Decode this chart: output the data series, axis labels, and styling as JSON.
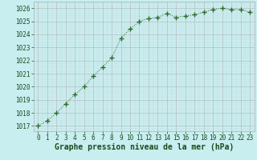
{
  "x": [
    0,
    1,
    2,
    3,
    4,
    5,
    6,
    7,
    8,
    9,
    10,
    11,
    12,
    13,
    14,
    15,
    16,
    17,
    18,
    19,
    20,
    21,
    22,
    23
  ],
  "y": [
    1017.0,
    1017.4,
    1018.0,
    1018.7,
    1019.4,
    1020.0,
    1020.8,
    1021.5,
    1022.2,
    1023.7,
    1024.4,
    1025.0,
    1025.2,
    1025.3,
    1025.6,
    1025.3,
    1025.4,
    1025.5,
    1025.7,
    1025.9,
    1026.0,
    1025.9,
    1025.9,
    1025.7
  ],
  "line_color": "#2d6a2d",
  "marker": "+",
  "marker_size": 4.0,
  "bg_color": "#c8eef0",
  "grid_color": "#b0b0b0",
  "grid_color_minor": "#c8d8d8",
  "xlabel": "Graphe pression niveau de la mer (hPa)",
  "xlabel_color": "#1a4a1a",
  "xlabel_fontsize": 7,
  "tick_fontsize": 5.5,
  "ylabel_ticks": [
    1017,
    1018,
    1019,
    1020,
    1021,
    1022,
    1023,
    1024,
    1025,
    1026
  ],
  "xlim": [
    -0.5,
    23.5
  ],
  "ylim": [
    1016.6,
    1026.5
  ]
}
